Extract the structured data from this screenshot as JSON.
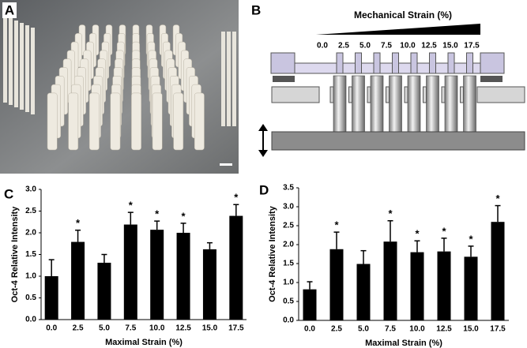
{
  "panels": {
    "a": {
      "label": "A"
    },
    "b": {
      "label": "B",
      "title": "Mechanical Strain (%)",
      "strain_labels": [
        "0.0",
        "2.5",
        "5.0",
        "7.5",
        "10.0",
        "12.5",
        "15.0",
        "17.5"
      ]
    }
  },
  "chart_data": [
    {
      "type": "bar",
      "label": "C",
      "x_label": "Maximal Strain (%)",
      "y_label": "Oct-4 Relative Intensity",
      "color": "#000000",
      "categories": [
        "0.0",
        "2.5",
        "5.0",
        "7.5",
        "10.0",
        "12.5",
        "15.0",
        "17.5"
      ],
      "values": [
        1.0,
        1.79,
        1.31,
        2.19,
        2.07,
        2.0,
        1.62,
        2.39
      ],
      "errors": [
        0.38,
        0.27,
        0.19,
        0.28,
        0.2,
        0.22,
        0.15,
        0.26
      ],
      "significant": [
        false,
        true,
        false,
        true,
        true,
        true,
        false,
        true
      ],
      "significance_marker": "*",
      "ylim": [
        0,
        3
      ],
      "yticks": [
        {
          "value": 0,
          "label": "0.0"
        },
        {
          "value": 0.5,
          "label": "0.5"
        },
        {
          "value": 1,
          "label": "1.0"
        },
        {
          "value": 1.5,
          "label": "1.5"
        },
        {
          "value": 2,
          "label": "2.0"
        },
        {
          "value": 2.5,
          "label": "2.5"
        },
        {
          "value": 3,
          "label": "3.0"
        }
      ]
    },
    {
      "type": "bar",
      "label": "D",
      "x_label": "Maximal Strain (%)",
      "y_label": "Oct-4 Relative Intensity",
      "color": "#000000",
      "categories": [
        "0.0",
        "2.5",
        "5.0",
        "7.5",
        "10.0",
        "12.5",
        "15.0",
        "17.5"
      ],
      "values": [
        0.82,
        1.88,
        1.49,
        2.08,
        1.8,
        1.82,
        1.68,
        2.6
      ],
      "errors": [
        0.2,
        0.45,
        0.35,
        0.55,
        0.3,
        0.35,
        0.28,
        0.43
      ],
      "significant": [
        false,
        true,
        false,
        true,
        true,
        true,
        true,
        true
      ],
      "significance_marker": "*",
      "ylim": [
        0,
        3.5
      ],
      "yticks": [
        {
          "value": 0,
          "label": "0.0"
        },
        {
          "value": 0.5,
          "label": "0.5"
        },
        {
          "value": 1,
          "label": "1.0"
        },
        {
          "value": 1.5,
          "label": "1.5"
        },
        {
          "value": 2,
          "label": "2.0"
        },
        {
          "value": 2.5,
          "label": "2.5"
        },
        {
          "value": 3,
          "label": "3.0"
        },
        {
          "value": 3.5,
          "label": "3.5"
        }
      ]
    }
  ]
}
